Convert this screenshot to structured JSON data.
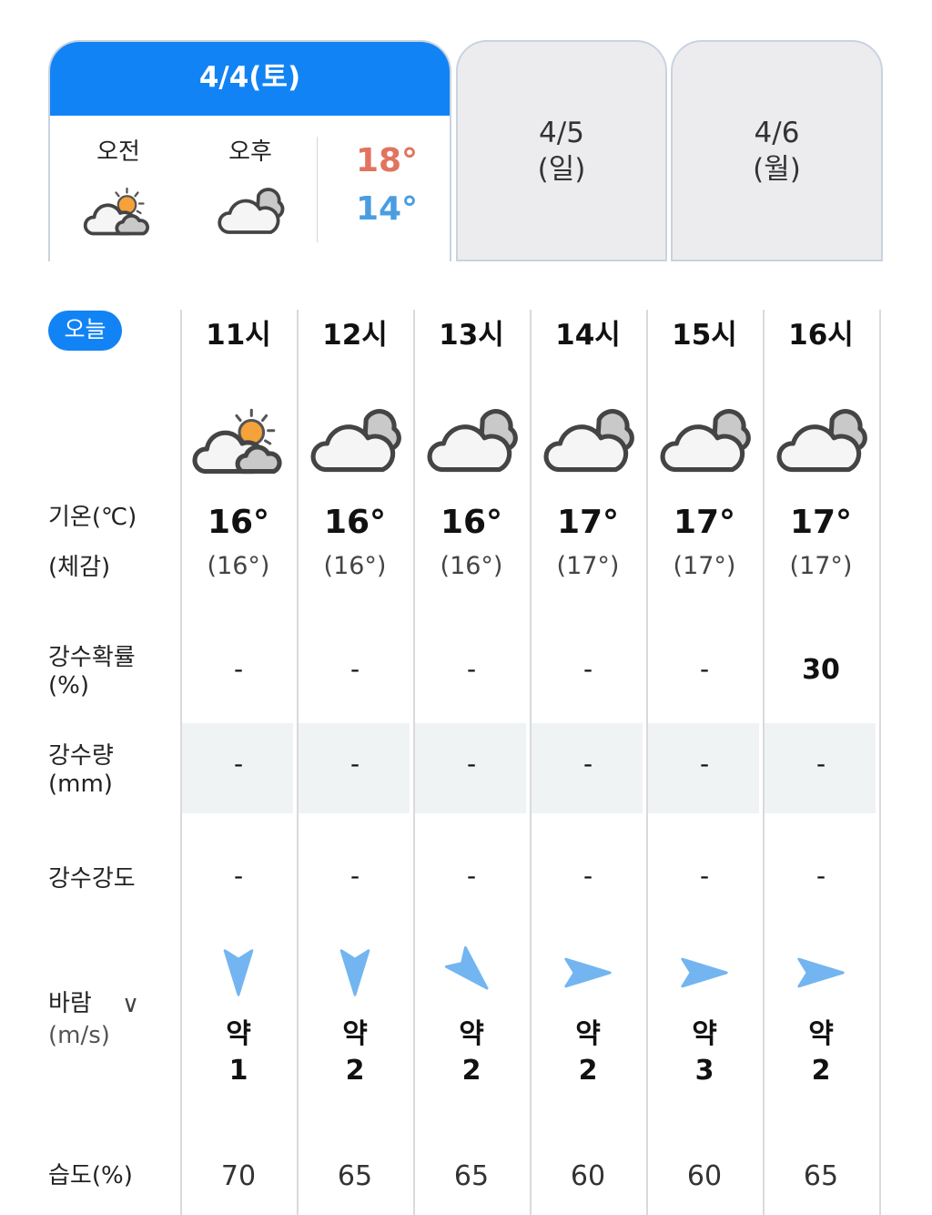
{
  "day_tabs": [
    {
      "label": "4/4(토)",
      "selected": true,
      "am_label": "오전",
      "pm_label": "오후",
      "am_icon": "partly-cloudy-icon",
      "pm_icon": "cloudy-icon",
      "high": "18°",
      "low": "14°"
    },
    {
      "label_date": "4/5",
      "label_day": "(일)",
      "selected": false
    },
    {
      "label_date": "4/6",
      "label_day": "(월)",
      "selected": false
    }
  ],
  "colors": {
    "accent": "#1283f5",
    "high": "#e2735f",
    "low": "#4a9de0",
    "wind_arrow": "#73b5f0"
  },
  "today_badge": "오늘",
  "row_labels": {
    "temp": "기온(℃)",
    "feel": "(체감)",
    "precip_prob": "강수확률",
    "precip_prob_unit": "(%)",
    "precip_amt": "강수량",
    "precip_amt_unit": "(mm)",
    "precip_int": "강수강도",
    "wind": "바람",
    "wind_unit": "(m/s)",
    "humidity": "습도(%)"
  },
  "hours": [
    {
      "hour": "11시",
      "icon": "partly-cloudy-icon",
      "temp": "16°",
      "feel": "(16°)",
      "precip_prob": "-",
      "precip_amt": "-",
      "precip_int": "-",
      "wind_rotation_deg": 90,
      "wind_strength": "약",
      "wind_speed": "1",
      "humidity": "70"
    },
    {
      "hour": "12시",
      "icon": "cloudy-icon",
      "temp": "16°",
      "feel": "(16°)",
      "precip_prob": "-",
      "precip_amt": "-",
      "precip_int": "-",
      "wind_rotation_deg": 90,
      "wind_strength": "약",
      "wind_speed": "2",
      "humidity": "65"
    },
    {
      "hour": "13시",
      "icon": "cloudy-icon",
      "temp": "16°",
      "feel": "(16°)",
      "precip_prob": "-",
      "precip_amt": "-",
      "precip_int": "-",
      "wind_rotation_deg": 45,
      "wind_strength": "약",
      "wind_speed": "2",
      "humidity": "65"
    },
    {
      "hour": "14시",
      "icon": "cloudy-icon",
      "temp": "17°",
      "feel": "(17°)",
      "precip_prob": "-",
      "precip_amt": "-",
      "precip_int": "-",
      "wind_rotation_deg": 0,
      "wind_strength": "약",
      "wind_speed": "2",
      "humidity": "60"
    },
    {
      "hour": "15시",
      "icon": "cloudy-icon",
      "temp": "17°",
      "feel": "(17°)",
      "precip_prob": "-",
      "precip_amt": "-",
      "precip_int": "-",
      "wind_rotation_deg": 0,
      "wind_strength": "약",
      "wind_speed": "3",
      "humidity": "60"
    },
    {
      "hour": "16시",
      "icon": "cloudy-icon",
      "temp": "17°",
      "feel": "(17°)",
      "precip_prob": "30",
      "precip_amt": "-",
      "precip_int": "-",
      "wind_rotation_deg": 0,
      "wind_strength": "약",
      "wind_speed": "2",
      "humidity": "65"
    }
  ]
}
